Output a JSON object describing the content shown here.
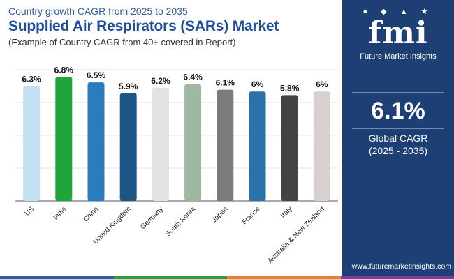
{
  "header": {
    "subtitle": "Country growth CAGR from 2025 to 2035",
    "title": "Supplied Air Respirators (SARs) Market",
    "note": "(Example of Country CAGR from 40+ covered in Report)"
  },
  "sidebar": {
    "logo_mark": "fmi",
    "logo_text": "Future Market Insights",
    "global_value": "6.1%",
    "global_label": "Global CAGR",
    "global_range": "(2025 - 2035)",
    "website": "www.futuremarketinsights.com",
    "bg_color": "#1e3f73"
  },
  "chart_data": {
    "type": "bar",
    "title": "Supplied Air Respirators (SARs) Market",
    "categories": [
      "US",
      "India",
      "China",
      "United Kingdom",
      "Germany",
      "South Korea",
      "Japan",
      "France",
      "Italy",
      "Australia & New Zealand"
    ],
    "values": [
      6.3,
      6.8,
      6.5,
      5.9,
      6.2,
      6.4,
      6.1,
      6.0,
      5.8,
      6.0
    ],
    "labels": [
      "6.3%",
      "6.8%",
      "6.5%",
      "5.9%",
      "6.2%",
      "6.4%",
      "6.1%",
      "6%",
      "5.8%",
      "6%"
    ],
    "colors": [
      "#c3e0f3",
      "#1ea63c",
      "#2b7bbf",
      "#1e5589",
      "#e2e2e2",
      "#9fb8a4",
      "#7b7b7b",
      "#2b72a8",
      "#444444",
      "#d8cfcf"
    ],
    "ylim": [
      0,
      7.5
    ],
    "grid": true,
    "xlabel": "",
    "ylabel": ""
  },
  "bottom_bar_colors": [
    "#2b5ea7",
    "#1ea63c",
    "#e8822a",
    "#7a3f9c"
  ]
}
